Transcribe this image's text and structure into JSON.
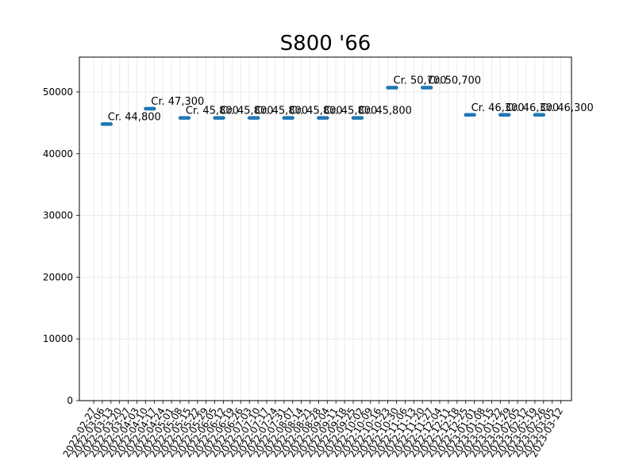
{
  "chart_data": {
    "type": "scatter",
    "title": "S800 '66",
    "xlabel": "",
    "ylabel": "",
    "ylim": [
      0,
      55650
    ],
    "yticks": [
      0,
      10000,
      20000,
      30000,
      40000,
      50000
    ],
    "grid": true,
    "marker_color": "#1f77b4",
    "x_tick_labels": [
      "2022-02-27",
      "2022-03-06",
      "2022-03-13",
      "2022-03-20",
      "2022-03-27",
      "2022-04-03",
      "2022-04-10",
      "2022-04-17",
      "2022-04-24",
      "2022-05-01",
      "2022-05-08",
      "2022-05-15",
      "2022-05-22",
      "2022-05-29",
      "2022-06-05",
      "2022-06-12",
      "2022-06-19",
      "2022-06-26",
      "2022-07-03",
      "2022-07-10",
      "2022-07-17",
      "2022-07-24",
      "2022-07-31",
      "2022-08-07",
      "2022-08-14",
      "2022-08-21",
      "2022-08-28",
      "2022-09-04",
      "2022-09-11",
      "2022-09-18",
      "2022-09-25",
      "2022-10-02",
      "2022-10-09",
      "2022-10-16",
      "2022-10-23",
      "2022-10-30",
      "2022-11-06",
      "2022-11-13",
      "2022-11-20",
      "2022-11-27",
      "2022-12-04",
      "2022-12-11",
      "2022-12-18",
      "2022-12-25",
      "2023-01-01",
      "2023-01-08",
      "2023-01-15",
      "2023-01-22",
      "2023-01-29",
      "2023-02-05",
      "2023-02-12",
      "2023-02-19",
      "2023-02-26",
      "2023-03-05",
      "2023-03-12"
    ],
    "points": [
      {
        "start": "2022-03-06",
        "end": "2022-03-13",
        "value": 44800,
        "label": "Cr. 44,800"
      },
      {
        "start": "2022-04-10",
        "end": "2022-04-17",
        "value": 47300,
        "label": "Cr. 47,300"
      },
      {
        "start": "2022-05-08",
        "end": "2022-05-15",
        "value": 45800,
        "label": "Cr. 45,800"
      },
      {
        "start": "2022-06-05",
        "end": "2022-06-12",
        "value": 45800,
        "label": "Cr. 45,800"
      },
      {
        "start": "2022-07-03",
        "end": "2022-07-10",
        "value": 45800,
        "label": "Cr. 45,800"
      },
      {
        "start": "2022-07-31",
        "end": "2022-08-07",
        "value": 45800,
        "label": "Cr. 45,800"
      },
      {
        "start": "2022-08-28",
        "end": "2022-09-04",
        "value": 45800,
        "label": "Cr. 45,800"
      },
      {
        "start": "2022-09-25",
        "end": "2022-10-02",
        "value": 45800,
        "label": "Cr. 45,800"
      },
      {
        "start": "2022-10-23",
        "end": "2022-10-30",
        "value": 50700,
        "label": "Cr. 50,700"
      },
      {
        "start": "2022-11-20",
        "end": "2022-11-27",
        "value": 50700,
        "label": "Cr. 50,700"
      },
      {
        "start": "2022-12-25",
        "end": "2023-01-01",
        "value": 46300,
        "label": "Cr. 46,300"
      },
      {
        "start": "2023-01-22",
        "end": "2023-01-29",
        "value": 46300,
        "label": "Cr. 46,300"
      },
      {
        "start": "2023-02-19",
        "end": "2023-02-26",
        "value": 46300,
        "label": "Cr. 46,300"
      }
    ]
  }
}
